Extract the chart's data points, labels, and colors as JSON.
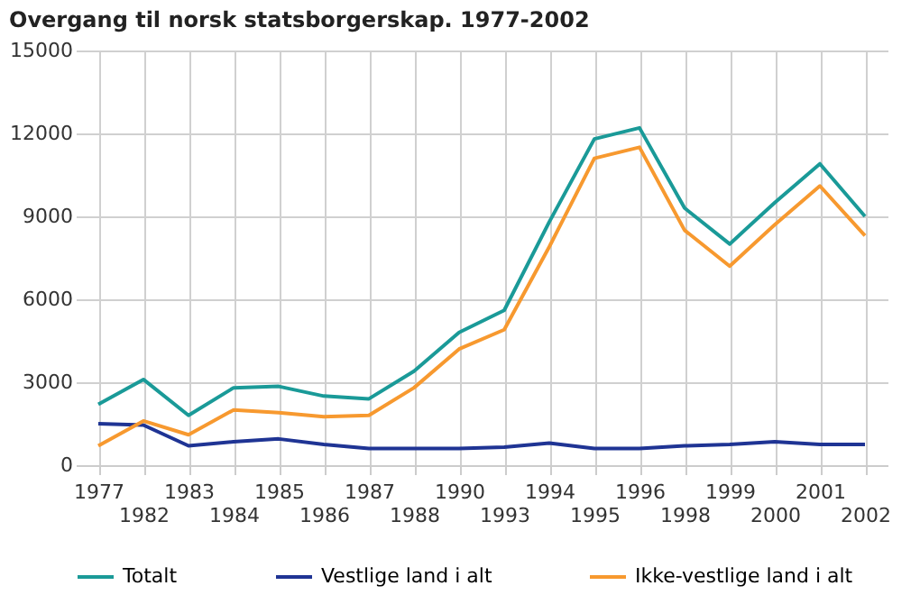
{
  "chart_data": {
    "type": "line",
    "title": "Overgang til norsk statsborgerskap. 1977-2002",
    "categories": [
      "1977",
      "1982",
      "1983",
      "1984",
      "1985",
      "1986",
      "1987",
      "1988",
      "1990",
      "1993",
      "1994",
      "1995",
      "1996",
      "1998",
      "1999",
      "2000",
      "2001",
      "2002"
    ],
    "series": [
      {
        "name": "Totalt",
        "color": "#1a9a98",
        "values": [
          2200,
          3100,
          1800,
          2800,
          2850,
          2500,
          2400,
          3400,
          4800,
          5600,
          8800,
          11800,
          12200,
          9300,
          8000,
          9500,
          10900,
          9000
        ]
      },
      {
        "name": "Vestlige land i alt",
        "color": "#1f3494",
        "values": [
          1500,
          1450,
          700,
          850,
          950,
          750,
          600,
          600,
          600,
          650,
          800,
          600,
          600,
          700,
          750,
          850,
          750,
          750
        ]
      },
      {
        "name": "Ikke-vestlige land i alt",
        "color": "#f7992f",
        "values": [
          700,
          1600,
          1100,
          2000,
          1900,
          1750,
          1800,
          2800,
          4200,
          4900,
          7900,
          11100,
          11500,
          8500,
          7200,
          8700,
          10100,
          8300
        ]
      }
    ],
    "ylim": [
      0,
      15000
    ],
    "yticks": [
      0,
      3000,
      6000,
      9000,
      12000,
      15000
    ],
    "grid": true,
    "legend": "bottom",
    "marker": "none",
    "line_style": "solid"
  }
}
